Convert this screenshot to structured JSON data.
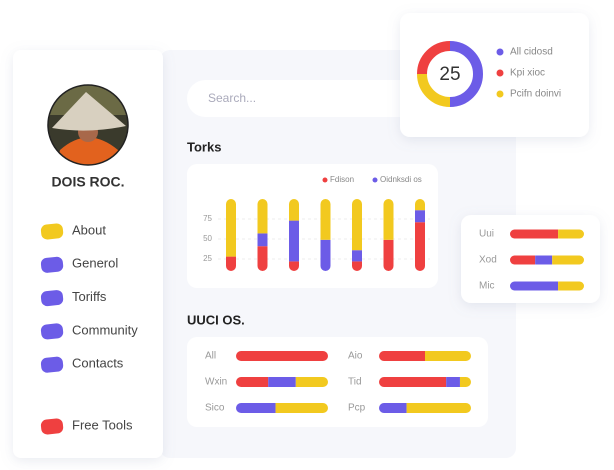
{
  "profile": {
    "name": "DOIS ROC."
  },
  "menu": [
    {
      "label": "About",
      "color": "#f2c91f"
    },
    {
      "label": "Generol",
      "color": "#6c5ce7"
    },
    {
      "label": "Toriffs",
      "color": "#6c5ce7"
    },
    {
      "label": "Community",
      "color": "#6c5ce7"
    },
    {
      "label": "Contacts",
      "color": "#6c5ce7"
    },
    {
      "label": "Free Tools",
      "color": "#ef4040"
    }
  ],
  "search": {
    "placeholder": "Search..."
  },
  "donut": {
    "center": 25,
    "series": [
      {
        "name": "All cidosd",
        "color": "#6c5ce7",
        "value": 50
      },
      {
        "name": "Kpi xioc",
        "color": "#ef4040",
        "value": 25
      },
      {
        "name": "Pcifn doinvi",
        "color": "#f2c91f",
        "value": 25
      }
    ]
  },
  "torks": {
    "title": "Torks",
    "ylim": [
      10,
      100
    ],
    "yticks": [
      25,
      50,
      75
    ],
    "series": [
      {
        "name": "Fdison",
        "color": "#ef4040",
        "values": [
          18,
          31,
          12,
          0,
          12,
          39,
          61
        ]
      },
      {
        "name": "Oidnksdi os",
        "color": "#6c5ce7",
        "values": [
          0,
          16,
          51,
          39,
          14,
          0,
          15
        ]
      },
      {
        "color": "#f2c91f",
        "values": [
          72,
          43,
          27,
          51,
          64,
          51,
          14
        ]
      }
    ]
  },
  "side_bars": {
    "rows": [
      {
        "label": "Uui",
        "segments": [
          {
            "color": "#ef4040",
            "value": 65
          },
          {
            "color": "#f2c91f",
            "value": 35
          }
        ]
      },
      {
        "label": "Xod",
        "segments": [
          {
            "color": "#ef4040",
            "value": 34
          },
          {
            "color": "#6c5ce7",
            "value": 23
          },
          {
            "color": "#f2c91f",
            "value": 43
          }
        ]
      },
      {
        "label": "Mic",
        "segments": [
          {
            "color": "#6c5ce7",
            "value": 65
          },
          {
            "color": "#f2c91f",
            "value": 35
          }
        ]
      }
    ]
  },
  "uuci": {
    "title": "UUCI OS.",
    "rows": [
      {
        "label": "All",
        "segments": [
          {
            "color": "#ef4040",
            "value": 100
          }
        ]
      },
      {
        "label": "Wxin",
        "segments": [
          {
            "color": "#ef4040",
            "value": 35
          },
          {
            "color": "#6c5ce7",
            "value": 30
          },
          {
            "color": "#f2c91f",
            "value": 35
          }
        ]
      },
      {
        "label": "Sico",
        "segments": [
          {
            "color": "#6c5ce7",
            "value": 43
          },
          {
            "color": "#f2c91f",
            "value": 57
          }
        ]
      },
      {
        "label": "Aio",
        "segments": [
          {
            "color": "#ef4040",
            "value": 50
          },
          {
            "color": "#f2c91f",
            "value": 50
          }
        ]
      },
      {
        "label": "Tid",
        "segments": [
          {
            "color": "#ef4040",
            "value": 73
          },
          {
            "color": "#6c5ce7",
            "value": 15
          },
          {
            "color": "#f2c91f",
            "value": 12
          }
        ]
      },
      {
        "label": "Pcp",
        "segments": [
          {
            "color": "#6c5ce7",
            "value": 30
          },
          {
            "color": "#f2c91f",
            "value": 70
          }
        ]
      }
    ]
  }
}
